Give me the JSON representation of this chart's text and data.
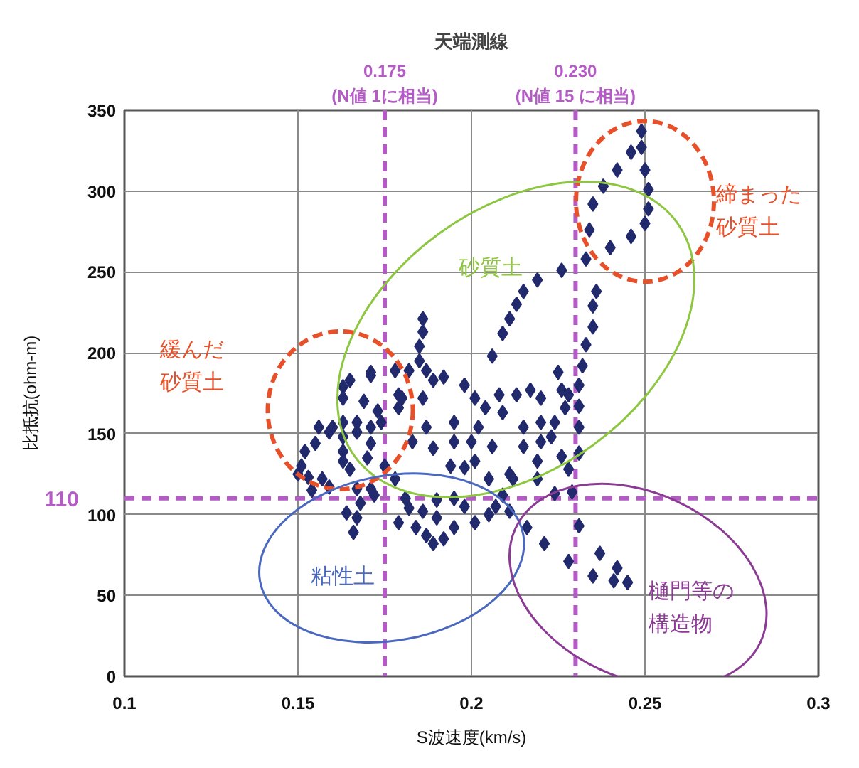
{
  "chart_data": {
    "type": "scatter",
    "title": "天端測線",
    "xlabel": "S波速度(km/s)",
    "ylabel": "比抵抗(ohm-m)",
    "series": [
      {
        "color": "#222a6e",
        "x": [
          0.249,
          0.249,
          0.246,
          0.242,
          0.25,
          0.238,
          0.251,
          0.235,
          0.251,
          0.25,
          0.234,
          0.246,
          0.24,
          0.233,
          0.236,
          0.235,
          0.235,
          0.233,
          0.232,
          0.231,
          0.231,
          0.231,
          0.231,
          0.226,
          0.219,
          0.215,
          0.213,
          0.211,
          0.209,
          0.206,
          0.225,
          0.186,
          0.186,
          0.185,
          0.185,
          0.182,
          0.187,
          0.18,
          0.179,
          0.186,
          0.189,
          0.192,
          0.187,
          0.189,
          0.183,
          0.178,
          0.178,
          0.175,
          0.171,
          0.165,
          0.163,
          0.163,
          0.169,
          0.173,
          0.174,
          0.167,
          0.171,
          0.163,
          0.16,
          0.156,
          0.171,
          0.179,
          0.159,
          0.155,
          0.152,
          0.151,
          0.153,
          0.157,
          0.163,
          0.163,
          0.165,
          0.163,
          0.167,
          0.171,
          0.17,
          0.167,
          0.168,
          0.167,
          0.166,
          0.164,
          0.171,
          0.15,
          0.154,
          0.159,
          0.172,
          0.198,
          0.201,
          0.204,
          0.202,
          0.2,
          0.201,
          0.206,
          0.209,
          0.208,
          0.213,
          0.217,
          0.22,
          0.226,
          0.228,
          0.22,
          0.215,
          0.224,
          0.227,
          0.215,
          0.22,
          0.223,
          0.219,
          0.226,
          0.228,
          0.211,
          0.205,
          0.195,
          0.195,
          0.194,
          0.198,
          0.212,
          0.219,
          0.224,
          0.229,
          0.182,
          0.179,
          0.184,
          0.189,
          0.187,
          0.192,
          0.195,
          0.19,
          0.186,
          0.198,
          0.195,
          0.201,
          0.205,
          0.207,
          0.209,
          0.181,
          0.19,
          0.211,
          0.216,
          0.221,
          0.228,
          0.231,
          0.237,
          0.235,
          0.242,
          0.241,
          0.245
        ],
        "values": [
          337,
          327,
          324,
          313,
          313,
          303,
          301,
          292,
          289,
          280,
          276,
          272,
          265,
          258,
          238,
          229,
          216,
          205,
          192,
          180,
          167,
          154,
          138,
          251,
          245,
          238,
          230,
          221,
          212,
          198,
          188,
          221,
          213,
          204,
          195,
          189,
          189,
          172,
          166,
          172,
          183,
          185,
          154,
          141,
          145,
          189,
          122,
          130,
          188,
          183,
          179,
          172,
          170,
          164,
          157,
          157,
          154,
          157,
          154,
          154,
          186,
          174,
          151,
          144,
          139,
          130,
          123,
          122,
          139,
          133,
          128,
          148,
          151,
          144,
          135,
          116,
          107,
          98,
          89,
          101,
          116,
          125,
          115,
          117,
          112,
          180,
          172,
          166,
          154,
          145,
          133,
          142,
          163,
          174,
          174,
          177,
          172,
          177,
          174,
          157,
          154,
          157,
          166,
          142,
          145,
          148,
          133,
          136,
          128,
          125,
          122,
          157,
          145,
          130,
          129,
          122,
          122,
          113,
          114,
          104,
          95,
          92,
          82,
          87,
          85,
          92,
          98,
          102,
          105,
          110,
          95,
          100,
          105,
          112,
          110,
          109,
          102,
          92,
          82,
          71,
          93,
          76,
          62,
          67,
          59,
          58
        ]
      }
    ],
    "marker": "diamond",
    "xlim": [
      0.1,
      0.3
    ],
    "xticks": [
      0.1,
      0.15,
      0.2,
      0.25,
      0.3
    ],
    "ylim": [
      0,
      350
    ],
    "yticks": [
      0,
      50,
      100,
      150,
      200,
      250,
      300,
      350
    ],
    "grid": true,
    "ref_lines": [
      {
        "axis": "x",
        "value": 0.175,
        "label": "0.175\n(N値 1に相当)",
        "color": "#b45bc6",
        "line_style": "dashed"
      },
      {
        "axis": "x",
        "value": 0.23,
        "label": "0.230\n(N値 15 に相当)",
        "color": "#b45bc6",
        "line_style": "dashed"
      },
      {
        "axis": "y",
        "value": 110,
        "label": "110",
        "color": "#b45bc6",
        "line_style": "dashed"
      }
    ],
    "annotations": [
      "締まった砂質土",
      "砂質土",
      "緩んだ砂質土",
      "粘性土",
      "樋門等の構造物"
    ]
  }
}
